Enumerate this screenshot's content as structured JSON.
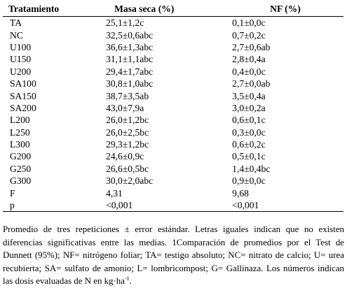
{
  "table": {
    "headers": [
      "Tratamiento",
      "Masa seca (%)",
      "NF (%)"
    ],
    "rows": [
      [
        "TA",
        "25,1±1,2c",
        "0,1±0,0c"
      ],
      [
        "NC",
        "32,5±0,6abc",
        "0,7±0,2c"
      ],
      [
        "U100",
        "36,6±1,3abc",
        "2,7±0,6ab"
      ],
      [
        "U150",
        "31,1±1,1abc",
        "2,8±0,4a"
      ],
      [
        "U200",
        "29,4±1,7abc",
        "0,4±0,0c"
      ],
      [
        "SA100",
        "30,8±1,0abc",
        "2,7±0,0ab"
      ],
      [
        "SA150",
        "38,7±3,5ab",
        "3,5±0,4a"
      ],
      [
        "SA200",
        "43,0±7,9a",
        "3,0±0,2a"
      ],
      [
        "L200",
        "26,0±1,2bc",
        "0,6±0,1c"
      ],
      [
        "L250",
        "26,0±2,5bc",
        "0,3±0,0c"
      ],
      [
        "L300",
        "29,3±1,2bc",
        "0,6±0,2c"
      ],
      [
        "G200",
        "24,6±0,9c",
        "0,5±0,1c"
      ],
      [
        "G250",
        "26,6±0,5bc",
        "1,4±0,4bc"
      ],
      [
        "G300",
        "30,0±2,0abc",
        "0,9±0,0c"
      ],
      [
        "F",
        "4,31",
        "9,68"
      ],
      [
        "p",
        "<0,001",
        "<0,001"
      ]
    ]
  },
  "footnote": {
    "text": "Promedio de tres repeticiones ± error estándar. Letras iguales indican que no existen diferencias significativas entre las medias. 1Comparación de promedios por el Test de Dunnett (95%); NF= nitrógeno foliar; TA= testigo absoluto; NC= nitrato de calcio; U= urea recubierta; SA= sulfato de amonio; L= lombricompost; G= Gallinaza. Los números indican las dosis evaluadas de N en kg·ha",
    "superscript": "-1",
    "end": "."
  }
}
